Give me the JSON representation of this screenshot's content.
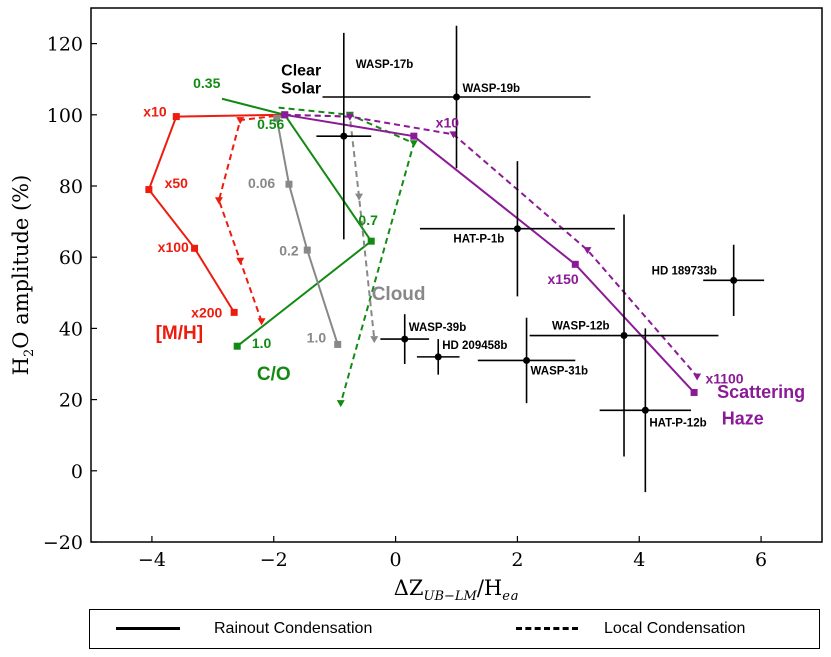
{
  "chart_data": {
    "type": "line",
    "xlabel": "ΔZ_{UB−LM}/H_{eq}",
    "ylabel": "H2O amplitude (%)",
    "xlim": [
      -5,
      7
    ],
    "ylim": [
      -20,
      130
    ],
    "xticks": [
      -4,
      -2,
      0,
      2,
      4,
      6
    ],
    "yticks": [
      -20,
      0,
      20,
      40,
      60,
      80,
      100,
      120
    ],
    "colors": {
      "red": "#ee1c0e",
      "green": "#138a13",
      "gray": "#888888",
      "purple": "#8b1a96",
      "black": "#000000"
    },
    "series": [
      {
        "name": "[M/H] rainout",
        "group": "metallicity",
        "style": "solid",
        "marker": "square",
        "color": "#ee1c0e",
        "points": [
          [
            -1.82,
            100
          ],
          [
            -3.6,
            99.5
          ],
          [
            -4.05,
            79
          ],
          [
            -3.3,
            62.5
          ],
          [
            -2.65,
            44.5
          ]
        ]
      },
      {
        "name": "[M/H] local",
        "group": "metallicity",
        "style": "dashed",
        "marker": "triangle",
        "color": "#ee1c0e",
        "points": [
          [
            -1.82,
            100
          ],
          [
            -2.55,
            98.5
          ],
          [
            -2.9,
            76
          ],
          [
            -2.55,
            59
          ],
          [
            -2.2,
            42
          ]
        ]
      },
      {
        "name": "C/O rainout",
        "group": "co",
        "style": "solid",
        "marker": "square",
        "color": "#138a13",
        "points": [
          [
            -2.85,
            104.5
          ],
          [
            -1.82,
            100
          ],
          [
            -0.4,
            64.5
          ],
          [
            -2.6,
            35
          ]
        ]
      },
      {
        "name": "C/O local",
        "group": "co",
        "style": "dashed",
        "marker": "triangle",
        "color": "#138a13",
        "points": [
          [
            -1.92,
            102
          ],
          [
            -0.75,
            100
          ],
          [
            0.3,
            92
          ],
          [
            -0.9,
            19
          ]
        ]
      },
      {
        "name": "Cloud rainout",
        "group": "cloud",
        "style": "solid",
        "marker": "square",
        "color": "#888888",
        "points": [
          [
            -1.82,
            100
          ],
          [
            -1.95,
            99
          ],
          [
            -1.75,
            80.5
          ],
          [
            -1.45,
            62
          ],
          [
            -0.95,
            35.5
          ]
        ]
      },
      {
        "name": "Cloud local",
        "group": "cloud",
        "style": "dashed",
        "marker": "triangle",
        "color": "#888888",
        "points": [
          [
            -1.82,
            100
          ],
          [
            -0.75,
            99.5
          ],
          [
            -0.6,
            77
          ],
          [
            -0.35,
            37
          ]
        ]
      },
      {
        "name": "Haze rainout",
        "group": "haze",
        "style": "solid",
        "marker": "square",
        "color": "#8b1a96",
        "points": [
          [
            -1.82,
            100
          ],
          [
            0.3,
            94
          ],
          [
            2.95,
            58
          ],
          [
            4.9,
            22
          ]
        ]
      },
      {
        "name": "Haze local",
        "group": "haze",
        "style": "dashed",
        "marker": "triangle",
        "color": "#8b1a96",
        "points": [
          [
            -1.82,
            100
          ],
          [
            -0.75,
            99.5
          ],
          [
            0.95,
            94.5
          ],
          [
            3.15,
            62
          ],
          [
            4.95,
            26.5
          ]
        ]
      }
    ],
    "observations": [
      {
        "name": "WASP-17b",
        "x": -0.85,
        "y": 94,
        "xerr": 0.45,
        "yerr": 29
      },
      {
        "name": "WASP-19b",
        "x": 1.0,
        "y": 105,
        "xerr": 2.2,
        "yerr": 20
      },
      {
        "name": "HAT-P-1b",
        "x": 2.0,
        "y": 68,
        "xerr": 1.6,
        "yerr": 19
      },
      {
        "name": "HD 189733b",
        "x": 5.55,
        "y": 53.5,
        "xerr": 0.5,
        "yerr": 10
      },
      {
        "name": "WASP-39b",
        "x": 0.15,
        "y": 37,
        "xerr": 0.4,
        "yerr": 7
      },
      {
        "name": "HD 209458b",
        "x": 0.7,
        "y": 32,
        "xerr": 0.35,
        "yerr": 5
      },
      {
        "name": "WASP-31b",
        "x": 2.15,
        "y": 31,
        "xerr": 0.8,
        "yerr": 12
      },
      {
        "name": "WASP-12b",
        "x": 3.75,
        "y": 38,
        "xerr": 1.55,
        "yerr": 34
      },
      {
        "name": "HAT-P-12b",
        "x": 4.1,
        "y": 17,
        "xerr": 0.75,
        "yerr": 23
      }
    ],
    "annotations": [
      {
        "id": "clear",
        "text": "Clear",
        "x": -1.55,
        "y": 111,
        "color": "#000000",
        "size": 16
      },
      {
        "id": "solar",
        "text": "Solar",
        "x": -1.55,
        "y": 106,
        "color": "#000000",
        "size": 16
      },
      {
        "id": "mh-title",
        "text": "[M/H]",
        "x": -3.55,
        "y": 37,
        "color": "#ee1c0e",
        "size": 19
      },
      {
        "id": "co-title",
        "text": "C/O",
        "x": -2.0,
        "y": 25.5,
        "color": "#138a13",
        "size": 19
      },
      {
        "id": "cloud-title",
        "text": "Cloud",
        "x": 0.05,
        "y": 48,
        "color": "#888888",
        "size": 19
      },
      {
        "id": "scattering",
        "text": "Scattering",
        "x": 6.0,
        "y": 20.5,
        "color": "#8b1a96",
        "size": 18
      },
      {
        "id": "haze",
        "text": "Haze",
        "x": 5.7,
        "y": 13,
        "color": "#8b1a96",
        "size": 18
      },
      {
        "id": "mh-x10",
        "text": "x10",
        "x": -3.95,
        "y": 99.5,
        "color": "#ee1c0e",
        "size": 14
      },
      {
        "id": "mh-x50",
        "text": "x50",
        "x": -3.6,
        "y": 79.5,
        "color": "#ee1c0e",
        "size": 14
      },
      {
        "id": "mh-x100",
        "text": "x100",
        "x": -3.65,
        "y": 61.5,
        "color": "#ee1c0e",
        "size": 14
      },
      {
        "id": "mh-x200",
        "text": "x200",
        "x": -3.1,
        "y": 43,
        "color": "#ee1c0e",
        "size": 14
      },
      {
        "id": "co-035",
        "text": "0.35",
        "x": -3.1,
        "y": 107.5,
        "color": "#138a13",
        "size": 14
      },
      {
        "id": "co-056",
        "text": "0.56",
        "x": -2.05,
        "y": 96,
        "color": "#138a13",
        "size": 14
      },
      {
        "id": "co-07",
        "text": "0.7",
        "x": -0.45,
        "y": 69,
        "color": "#138a13",
        "size": 14
      },
      {
        "id": "co-10",
        "text": "1.0",
        "x": -2.2,
        "y": 34.5,
        "color": "#138a13",
        "size": 14
      },
      {
        "id": "cloud-006",
        "text": "0.06",
        "x": -2.2,
        "y": 79.5,
        "color": "#888888",
        "size": 14
      },
      {
        "id": "cloud-02",
        "text": "0.2",
        "x": -1.75,
        "y": 60.5,
        "color": "#888888",
        "size": 14
      },
      {
        "id": "cloud-10",
        "text": "1.0",
        "x": -1.3,
        "y": 36,
        "color": "#888888",
        "size": 14
      },
      {
        "id": "haze-x10",
        "text": "x10",
        "x": 0.85,
        "y": 96.5,
        "color": "#8b1a96",
        "size": 14
      },
      {
        "id": "haze-x150",
        "text": "x150",
        "x": 2.75,
        "y": 52.5,
        "color": "#8b1a96",
        "size": 14
      },
      {
        "id": "haze-x1100",
        "text": "x1100",
        "x": 5.4,
        "y": 24.5,
        "color": "#8b1a96",
        "size": 14
      }
    ]
  },
  "legend": {
    "solid_label": "Rainout Condensation",
    "dashed_label": "Local Condensation"
  }
}
